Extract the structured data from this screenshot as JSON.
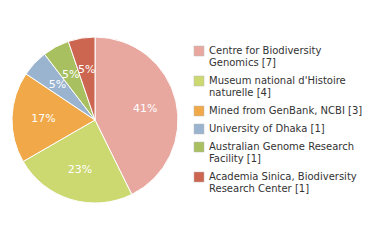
{
  "chart_data": {
    "type": "pie",
    "categories": [
      "Centre for Biodiversity\nGenomics [7]",
      "Museum national d'Histoire\nnaturelle [4]",
      "Mined from GenBank, NCBI [3]",
      "University of Dhaka [1]",
      "Australian Genome Research\nFacility [1]",
      "Academia Sinica, Biodiversity\nResearch Center [1]"
    ],
    "values": [
      41,
      23,
      17,
      5,
      5,
      5
    ],
    "value_labels": [
      "41%",
      "23%",
      "17%",
      "5%",
      "5%",
      "5%"
    ],
    "colors": [
      "#e8a8a0",
      "#ccd870",
      "#f0a848",
      "#9ab4d0",
      "#a8c060",
      "#cc6650"
    ],
    "data_labels": true,
    "legend": "right"
  }
}
